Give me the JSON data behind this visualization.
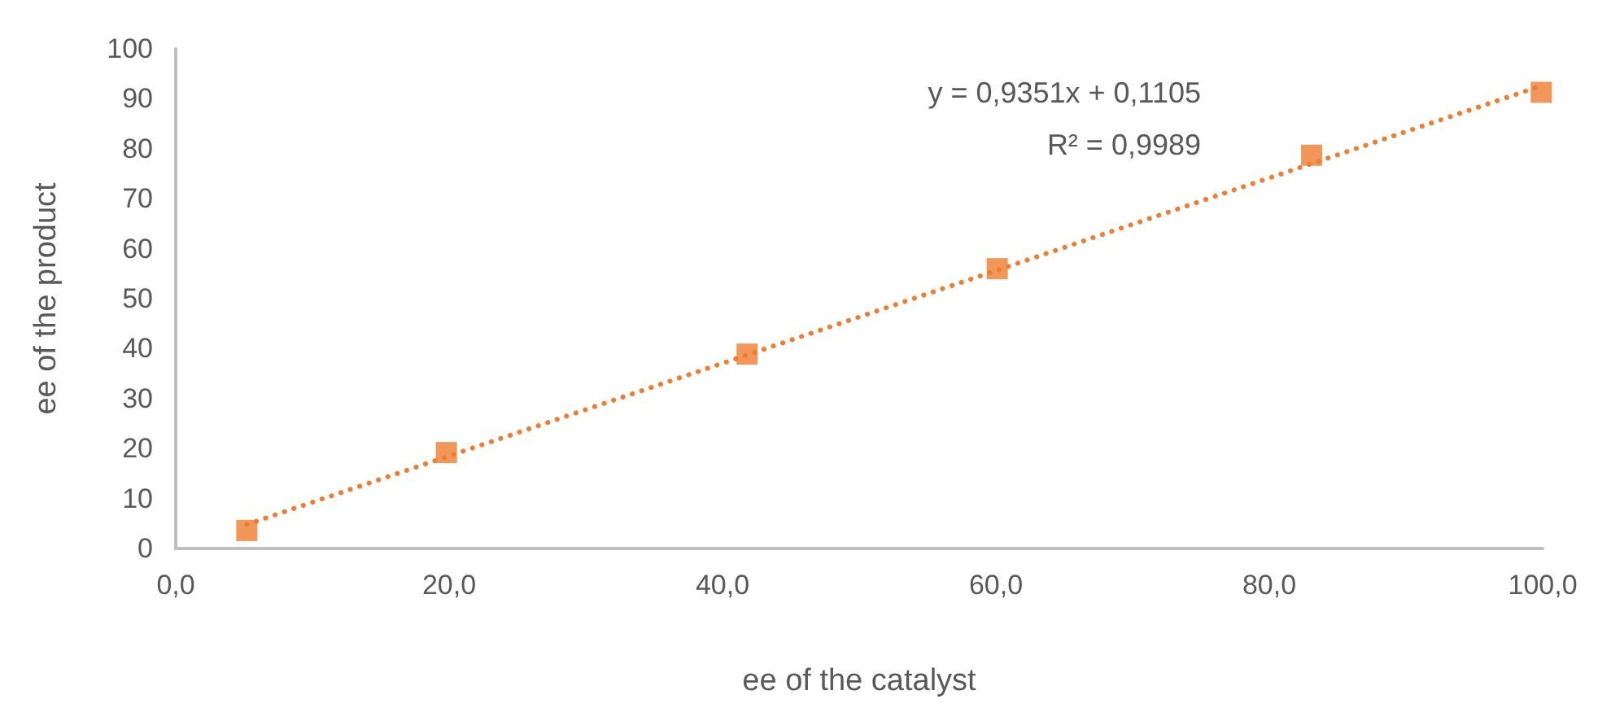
{
  "chart_data": {
    "type": "scatter",
    "xlabel": "ee of the catalyst",
    "ylabel": "ee of the product",
    "x": [
      5.2,
      19.8,
      41.8,
      60.1,
      83.1,
      99.9
    ],
    "series": [
      {
        "color": "#ed7d31",
        "marker": "square",
        "values": [
          3.6,
          19.2,
          38.9,
          56.0,
          78.7,
          91.3
        ]
      },
      {
        "type": "line",
        "color": "#ed7d31",
        "line_style": "dotted",
        "marker": "none",
        "x": [
          5.2,
          99.9
        ],
        "values": [
          4.8,
          92.6
        ]
      }
    ],
    "annotations": [
      "y = 0,9351x + 0,1105",
      "R² = 0,9989"
    ],
    "xlim": [
      0,
      100
    ],
    "xticks": [
      {
        "value": 0,
        "label": "0,0"
      },
      {
        "value": 20,
        "label": "20,0"
      },
      {
        "value": 40,
        "label": "40,0"
      },
      {
        "value": 60,
        "label": "60,0"
      },
      {
        "value": 80,
        "label": "80,0"
      },
      {
        "value": 100,
        "label": "100,0"
      }
    ],
    "ylim": [
      0,
      100
    ],
    "yticks": [
      0,
      10,
      20,
      30,
      40,
      50,
      60,
      70,
      80,
      90,
      100
    ],
    "grid": false
  }
}
